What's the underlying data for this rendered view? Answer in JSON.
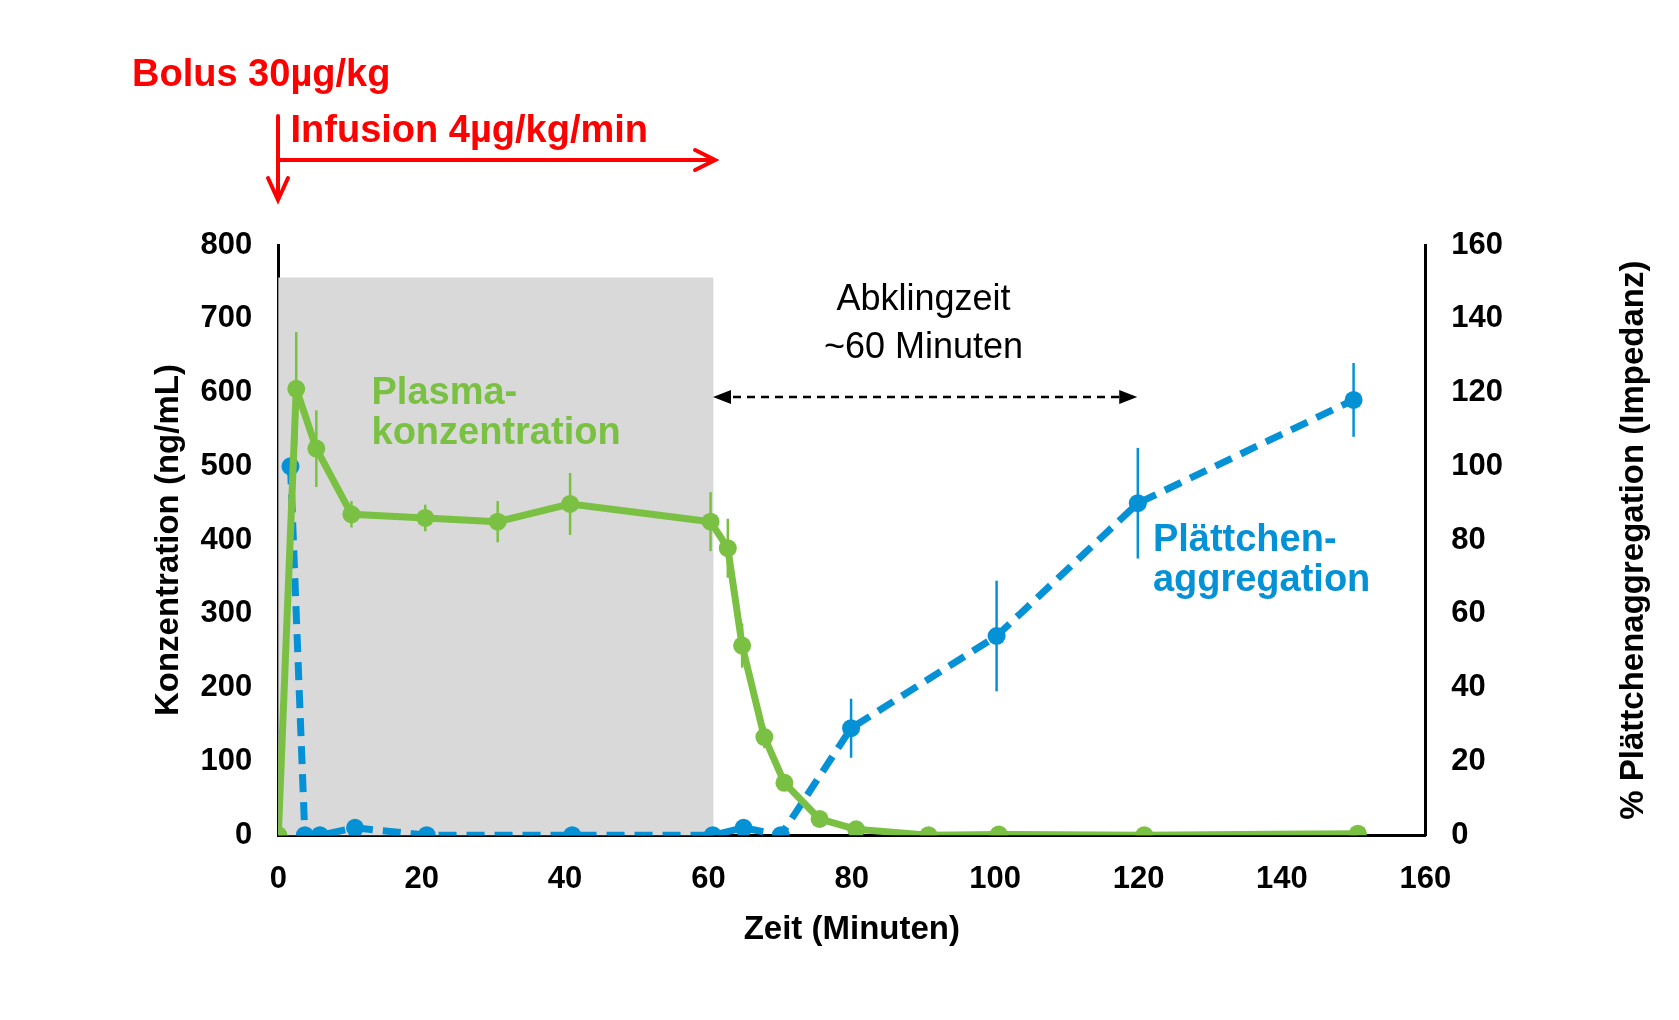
{
  "chart_data": {
    "type": "line",
    "xlabel": "Zeit (Minuten)",
    "ylabel": "Konzentration (ng/mL)",
    "y2label": "% Plättchenaggregation (Impedanz)",
    "xlim": [
      0,
      160
    ],
    "xticks": [
      0,
      20,
      40,
      60,
      80,
      100,
      120,
      140,
      160
    ],
    "ylim": [
      0,
      800
    ],
    "yticks": [
      0,
      100,
      200,
      300,
      400,
      500,
      600,
      700,
      800
    ],
    "y2lim": [
      0,
      160
    ],
    "y2ticks": [
      0,
      20,
      40,
      60,
      80,
      100,
      120,
      140,
      160
    ],
    "grid": false,
    "legend": false,
    "marker": "circle",
    "bands": [
      {
        "axis": "x",
        "from": 0,
        "to": 60.7,
        "color": "#d9d9d9"
      }
    ],
    "annotations": [
      "Bolus 30µg/kg",
      "Infusion 4µg/kg/min",
      "Abklingzeit ~60 Minuten"
    ],
    "series": [
      {
        "name": "Plasma-konzentration",
        "color": "#7ac143",
        "line_style": "solid",
        "x": [
          0,
          2.5,
          5.3,
          10.2,
          20.5,
          30.6,
          40.7,
          60.3,
          62.7,
          64.7,
          67.8,
          70.6,
          75.5,
          80.6,
          90.7,
          100.5,
          120.8,
          150.6
        ],
        "values": [
          0,
          605,
          524,
          435,
          430,
          425,
          449,
          425,
          389,
          257,
          133,
          71,
          22,
          8,
          0,
          1,
          0,
          2
        ],
        "errors": [
          null,
          77,
          52,
          18,
          18,
          28,
          42,
          40,
          40,
          30,
          15,
          10,
          null,
          null,
          null,
          null,
          null,
          null
        ]
      },
      {
        "name": "Plättchen-aggregation",
        "color": "#0591d6",
        "line_style": "dashed",
        "axis": "y2",
        "x": [
          1.7,
          3.7,
          5.8,
          10.7,
          20.7,
          41,
          60.6,
          64.9,
          70.1,
          79.9,
          100.2,
          119.9,
          150
        ],
        "values": [
          100,
          0,
          0,
          2,
          0,
          0,
          0,
          2,
          0,
          29,
          54,
          90,
          118
        ],
        "errors": [
          null,
          null,
          null,
          null,
          null,
          null,
          null,
          null,
          null,
          8,
          15,
          15,
          10
        ]
      }
    ]
  }
}
